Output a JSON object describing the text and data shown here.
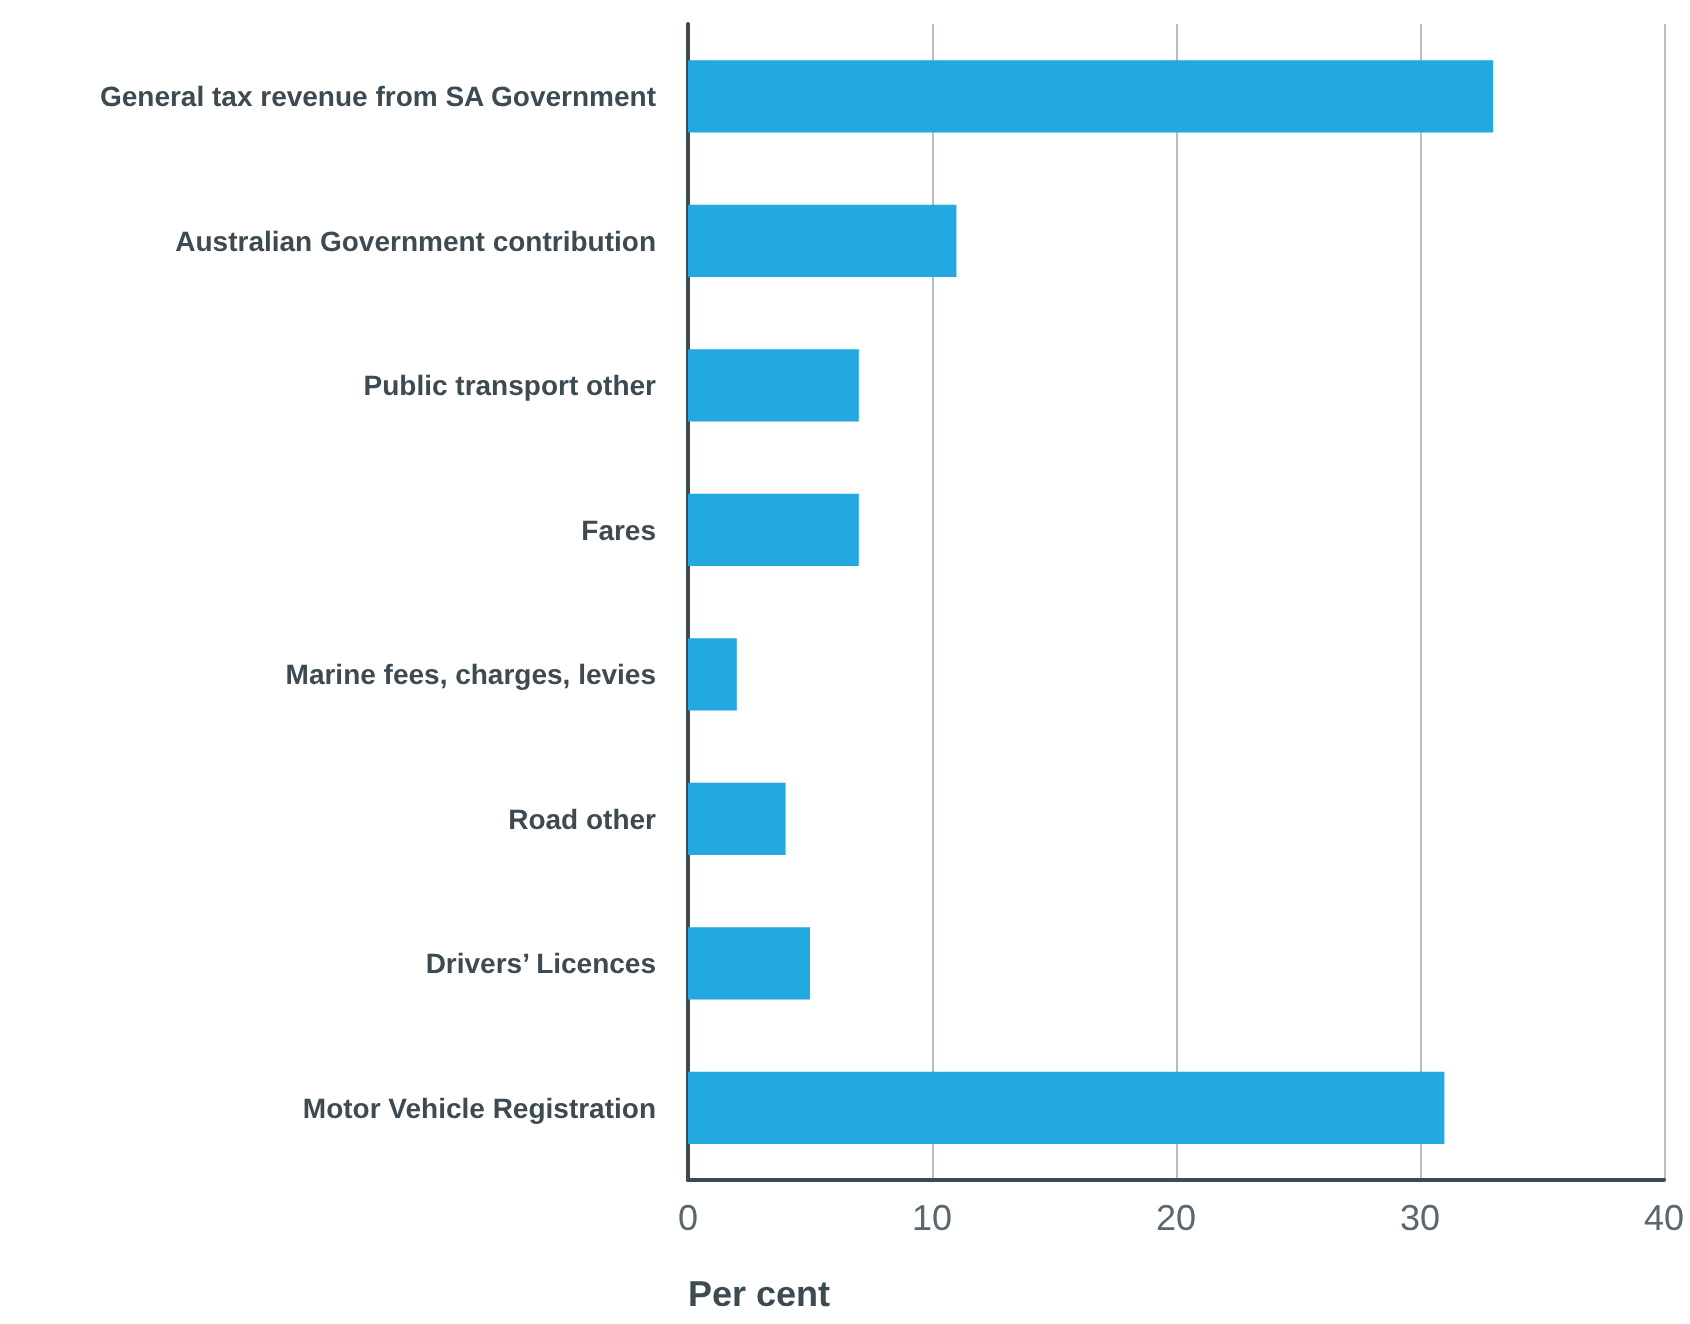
{
  "chart_data": {
    "type": "bar",
    "orientation": "horizontal",
    "xlabel": "Per cent",
    "categories": [
      "General tax revenue from SA Government",
      "Australian Government contribution",
      "Public transport other",
      "Fares",
      "Marine fees, charges, levies",
      "Road other",
      "Drivers’ Licences",
      "Motor Vehicle Registration"
    ],
    "values": [
      33,
      11,
      7,
      7,
      2,
      4,
      5,
      31
    ],
    "color": "#23a8e0",
    "xlim": [
      0,
      40
    ],
    "xticks": [
      0,
      10,
      20,
      30,
      40
    ],
    "grid": "x"
  }
}
